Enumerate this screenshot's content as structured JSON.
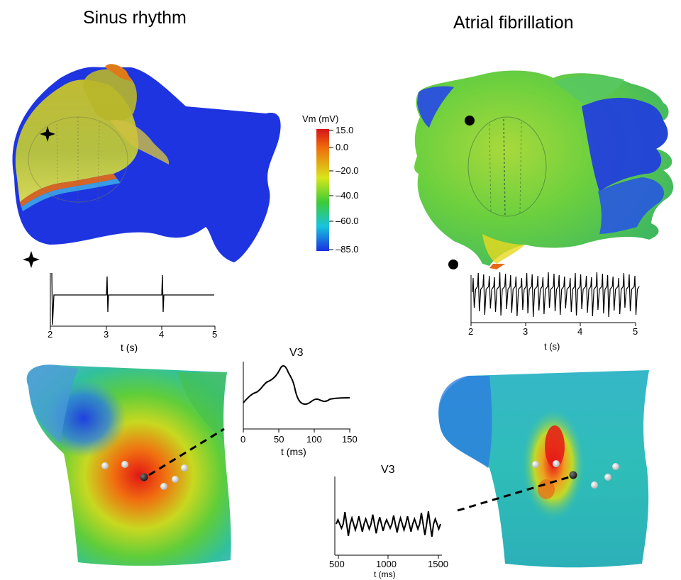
{
  "titles": {
    "left": "Sinus rhythm",
    "right": "Atrial fibrillation"
  },
  "colorbar": {
    "title": "Vm (mV)",
    "labels": [
      "15.0",
      "0.0",
      "–20.0",
      "–40.0",
      "–60.0",
      "–85.0"
    ],
    "colors": [
      "#d4141a",
      "#ee6b0c",
      "#d8e51c",
      "#3ccc38",
      "#18c3de",
      "#1a2fe0"
    ]
  },
  "sinus_trace": {
    "marker": "star-marker",
    "xticks": [
      "2",
      "3",
      "4",
      "5"
    ],
    "xlabel": "t (s)"
  },
  "af_trace": {
    "marker": "dot-marker",
    "xticks": [
      "2",
      "3",
      "4",
      "5"
    ],
    "xlabel": "t (s)"
  },
  "v3_sinus": {
    "title": "V3",
    "xticks": [
      "0",
      "50",
      "100",
      "150"
    ],
    "xlabel": "t (ms)"
  },
  "v3_af": {
    "title": "V3",
    "xticks": [
      "500",
      "1000",
      "1500"
    ],
    "xlabel": "t (ms)"
  },
  "colors": {
    "blue": "#1a2fe0",
    "electrode_dark": "#2a2a2a",
    "electrode_light": "#e8e8e8"
  }
}
